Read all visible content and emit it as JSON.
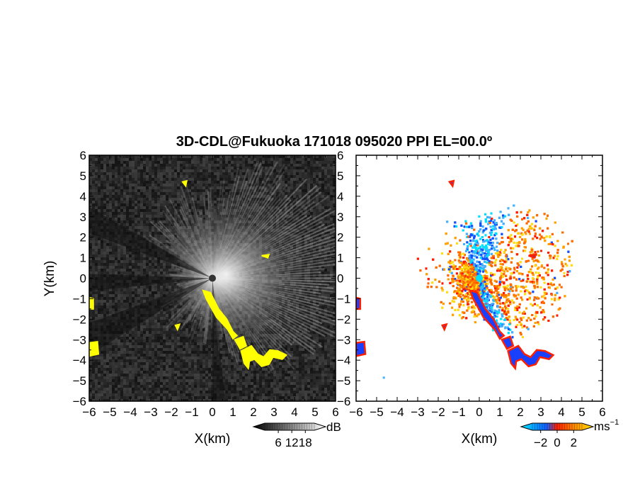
{
  "chart_data": {
    "type": "heatmap",
    "title": "3D-CDL@Fukuoka 171018 095020 PPI EL=00.0º",
    "panels": [
      {
        "name": "snr",
        "xlabel": "X(km)",
        "ylabel": "Y(km)",
        "xlim": [
          -6,
          6
        ],
        "ylim": [
          -6,
          6
        ],
        "x_ticks": [
          "-6",
          "-5",
          "-4",
          "-3",
          "-2",
          "-1",
          "0",
          "1",
          "2",
          "3",
          "4",
          "5",
          "6"
        ],
        "y_ticks": [
          "6",
          "5",
          "4",
          "3",
          "2",
          "1",
          "0",
          "-1",
          "-2",
          "-3",
          "-4",
          "-5",
          "-6"
        ],
        "colorbar": {
          "unit": "dB",
          "range": [
            0,
            22
          ],
          "ticks": [
            "6",
            "12",
            "18"
          ],
          "tick_values": [
            6,
            12,
            18
          ],
          "colors": [
            "#000000",
            "#ffffff"
          ]
        }
      },
      {
        "name": "velocity",
        "xlabel": "X(km)",
        "xlim": [
          -6,
          6
        ],
        "ylim": [
          -6,
          6
        ],
        "x_ticks": [
          "-6",
          "-5",
          "-4",
          "-3",
          "-2",
          "-1",
          "0",
          "1",
          "2",
          "3",
          "4",
          "5",
          "6"
        ],
        "y_ticks": [
          "6",
          "5",
          "4",
          "3",
          "2",
          "1",
          "0",
          "-1",
          "-2",
          "-3",
          "-4",
          "-5",
          "-6"
        ],
        "colorbar": {
          "unit": "ms",
          "unit_exp": "−1",
          "range": [
            -3,
            3
          ],
          "ticks": [
            "-2",
            "0",
            "2"
          ],
          "tick_values": [
            -2,
            0,
            2
          ],
          "colors": [
            "#00e5ff",
            "#1060ff",
            "#ff2000",
            "#ffb000",
            "#ffe000"
          ]
        }
      }
    ],
    "highlight_color": "#ffff00",
    "grid": false
  }
}
